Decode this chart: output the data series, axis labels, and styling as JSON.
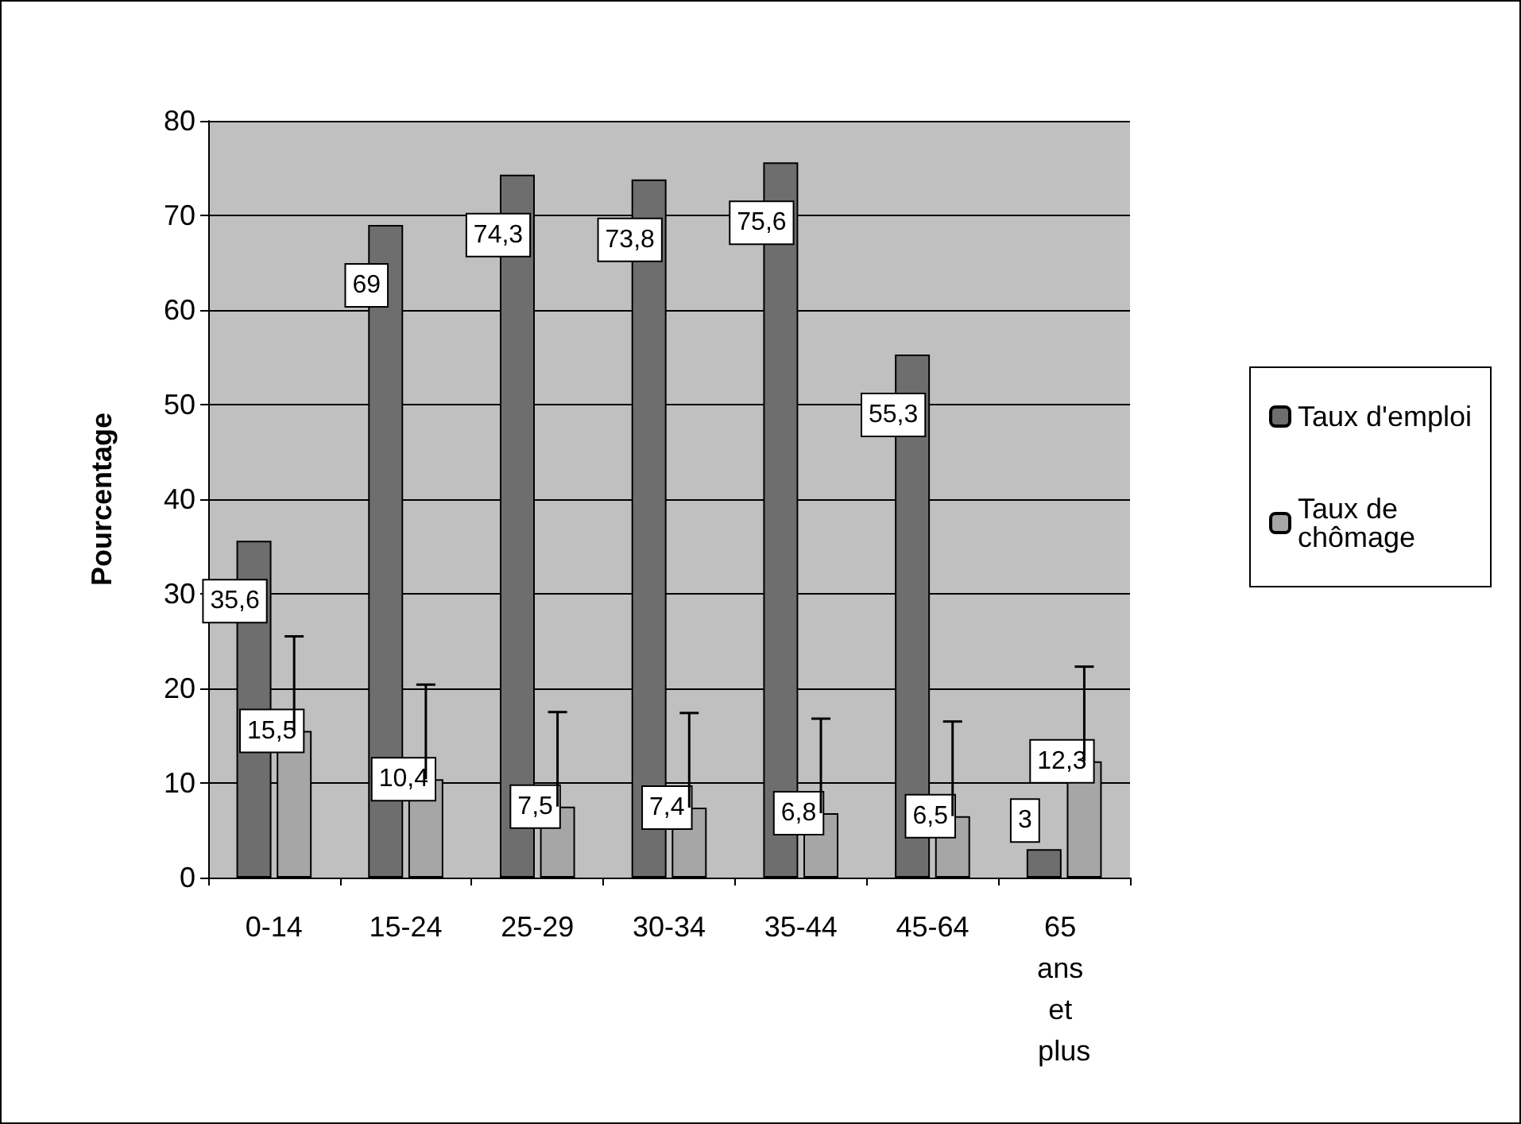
{
  "chart_data": {
    "type": "bar",
    "ylabel": "Pourcentage",
    "categories": [
      "0-14",
      "15-24",
      "25-29",
      "30-34",
      "35-44",
      "45-64",
      "65 ans et plus"
    ],
    "series": [
      {
        "name": "Taux d'emploi",
        "color": "#6e6e6e",
        "values": [
          35.6,
          69,
          74.3,
          73.8,
          75.6,
          55.3,
          3
        ],
        "value_labels": [
          "35,6",
          "69",
          "74,3",
          "73,8",
          "75,6",
          "55,3",
          "3"
        ]
      },
      {
        "name": "Taux de chômage",
        "color": "#a6a6a6",
        "values": [
          15.5,
          10.4,
          7.5,
          7.4,
          6.8,
          6.5,
          12.3
        ],
        "value_labels": [
          "15,5",
          "10,4",
          "7,5",
          "7,4",
          "6,8",
          "6,5",
          "12,3"
        ],
        "errors": [
          [
            15.5,
            25.5
          ],
          [
            10.4,
            20.4
          ],
          [
            7.5,
            17.5
          ],
          [
            7.4,
            17.4
          ],
          [
            6.8,
            16.8
          ],
          [
            6.5,
            16.5
          ],
          [
            12.3,
            22.3
          ]
        ]
      }
    ],
    "ylim": [
      0,
      80
    ],
    "yticks": [
      0,
      10,
      20,
      30,
      40,
      50,
      60,
      70,
      80
    ],
    "grid": "y",
    "legend": "right"
  }
}
